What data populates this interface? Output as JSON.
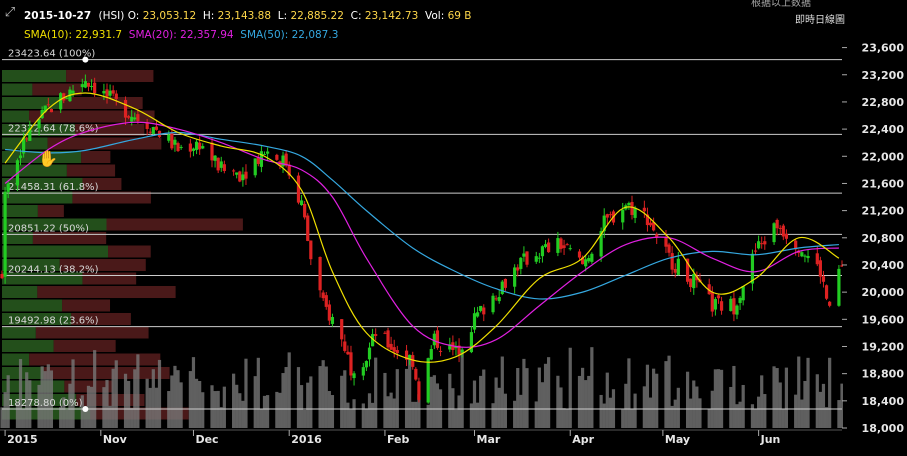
{
  "header": {
    "date": "2015-10-27",
    "symbol": "(HSI)",
    "open_label": "O:",
    "open": "23,053.12",
    "high_label": "H:",
    "high": "23,143.88",
    "low_label": "L:",
    "low": "22,885.22",
    "close_label": "C:",
    "close": "23,142.73",
    "vol_label": "Vol:",
    "vol": "69 B",
    "sma10_label": "SMA(10):",
    "sma10": "22,931.7",
    "sma20_label": "SMA(20):",
    "sma20": "22,357.94",
    "sma50_label": "SMA(50):",
    "sma50": "22,087.3",
    "top_right": "即時日線圖",
    "top_right_faint": "根据以上数据"
  },
  "colors": {
    "background": "#000000",
    "up": "#22cc22",
    "down": "#dd2222",
    "sma10": "#f0e000",
    "sma20": "#e020e0",
    "sma50": "#35a8e0",
    "volume": "#777777",
    "fib_line": "#cccccc"
  },
  "chart_data": {
    "type": "candlestick",
    "y_axis": {
      "ticks": [
        "23,600",
        "23,200",
        "22,800",
        "22,400",
        "22,000",
        "21,600",
        "21,200",
        "20,800",
        "20,400",
        "20,000",
        "19,600",
        "19,200",
        "18,800",
        "18,400",
        "18,000"
      ],
      "tick_values": [
        23600,
        23200,
        22800,
        22400,
        22000,
        21600,
        21200,
        20800,
        20400,
        20000,
        19600,
        19200,
        18800,
        18400,
        18000
      ],
      "ylim": [
        18000,
        23800
      ],
      "position": "right"
    },
    "x_axis": {
      "labels": [
        "2015",
        "Nov",
        "Dec",
        "2016",
        "Feb",
        "Mar",
        "Apr",
        "May",
        "Jun"
      ],
      "label_dates": [
        "2015-10-01",
        "2015-11-01",
        "2015-12-01",
        "2016-01-01",
        "2016-02-01",
        "2016-03-01",
        "2016-04-01",
        "2016-05-01",
        "2016-06-01"
      ],
      "range": [
        "2015-09-30",
        "2016-06-28"
      ]
    },
    "fibonacci": [
      {
        "label": "23423.64 (100%)",
        "value": 23423.64
      },
      {
        "label": "22322.64 (78.6%)",
        "value": 22322.64
      },
      {
        "label": "21458.31 (61.8%)",
        "value": 21458.31
      },
      {
        "label": "20851.22 (50%)",
        "value": 20851.22
      },
      {
        "label": "20244.13 (38.2%)",
        "value": 20244.13
      },
      {
        "label": "19492.98 (23.6%)",
        "value": 19492.98
      },
      {
        "label": "18278.80 (0%)",
        "value": 18278.8
      }
    ],
    "close_series": {
      "dates": [
        "2015-10-01",
        "2015-10-08",
        "2015-10-15",
        "2015-10-22",
        "2015-10-27",
        "2015-11-05",
        "2015-11-12",
        "2015-11-19",
        "2015-11-26",
        "2015-12-03",
        "2015-12-10",
        "2015-12-17",
        "2015-12-24",
        "2015-12-31",
        "2016-01-05",
        "2016-01-08",
        "2016-01-12",
        "2016-01-15",
        "2016-01-19",
        "2016-01-21",
        "2016-01-26",
        "2016-01-29",
        "2016-02-03",
        "2016-02-10",
        "2016-02-12",
        "2016-02-17",
        "2016-02-24",
        "2016-03-01",
        "2016-03-08",
        "2016-03-15",
        "2016-03-22",
        "2016-03-29",
        "2016-04-05",
        "2016-04-12",
        "2016-04-19",
        "2016-04-26",
        "2016-05-03",
        "2016-05-10",
        "2016-05-17",
        "2016-05-24",
        "2016-05-31",
        "2016-06-07",
        "2016-06-14",
        "2016-06-21",
        "2016-06-24",
        "2016-06-27"
      ],
      "values": [
        21500,
        22300,
        22700,
        22950,
        23143,
        22800,
        22600,
        22400,
        22100,
        22200,
        21800,
        21750,
        22100,
        21900,
        21300,
        20500,
        19800,
        19600,
        19200,
        18900,
        19050,
        19400,
        19200,
        19000,
        18500,
        19300,
        19100,
        19600,
        20000,
        20400,
        20600,
        20700,
        20400,
        21000,
        21300,
        21100,
        20500,
        20200,
        19800,
        19800,
        20600,
        21000,
        20700,
        20300,
        19700,
        20300
      ]
    },
    "sma10_series": {
      "dates": [
        "2015-10-01",
        "2015-10-15",
        "2015-10-27",
        "2015-11-12",
        "2015-11-26",
        "2015-12-10",
        "2015-12-24",
        "2016-01-05",
        "2016-01-15",
        "2016-01-26",
        "2016-02-10",
        "2016-02-24",
        "2016-03-08",
        "2016-03-22",
        "2016-04-05",
        "2016-04-19",
        "2016-05-03",
        "2016-05-17",
        "2016-05-31",
        "2016-06-14",
        "2016-06-27"
      ],
      "values": [
        21900,
        22700,
        22932,
        22700,
        22350,
        22150,
        22000,
        21500,
        20300,
        19400,
        19000,
        19050,
        19500,
        20200,
        20500,
        21250,
        20800,
        20000,
        20200,
        20800,
        20500
      ]
    },
    "sma20_series": {
      "dates": [
        "2015-10-01",
        "2015-10-15",
        "2015-10-27",
        "2015-11-12",
        "2015-11-26",
        "2015-12-10",
        "2015-12-24",
        "2016-01-05",
        "2016-01-15",
        "2016-01-26",
        "2016-02-10",
        "2016-02-24",
        "2016-03-08",
        "2016-03-22",
        "2016-04-05",
        "2016-04-19",
        "2016-05-03",
        "2016-05-17",
        "2016-05-31",
        "2016-06-14",
        "2016-06-27"
      ],
      "values": [
        21600,
        22100,
        22358,
        22500,
        22400,
        22200,
        21950,
        21800,
        21400,
        20500,
        19500,
        19200,
        19300,
        19800,
        20300,
        20700,
        20800,
        20500,
        20300,
        20600,
        20650
      ]
    },
    "sma50_series": {
      "dates": [
        "2015-10-01",
        "2015-10-15",
        "2015-10-27",
        "2015-11-12",
        "2015-11-26",
        "2015-12-10",
        "2015-12-24",
        "2016-01-05",
        "2016-01-15",
        "2016-01-26",
        "2016-02-10",
        "2016-02-24",
        "2016-03-08",
        "2016-03-22",
        "2016-04-05",
        "2016-04-19",
        "2016-05-03",
        "2016-05-17",
        "2016-05-31",
        "2016-06-14",
        "2016-06-27"
      ],
      "values": [
        22100,
        22050,
        22087,
        22250,
        22350,
        22250,
        22150,
        22000,
        21650,
        21200,
        20650,
        20300,
        20050,
        19900,
        20000,
        20250,
        20500,
        20600,
        20550,
        20650,
        20700
      ]
    }
  }
}
